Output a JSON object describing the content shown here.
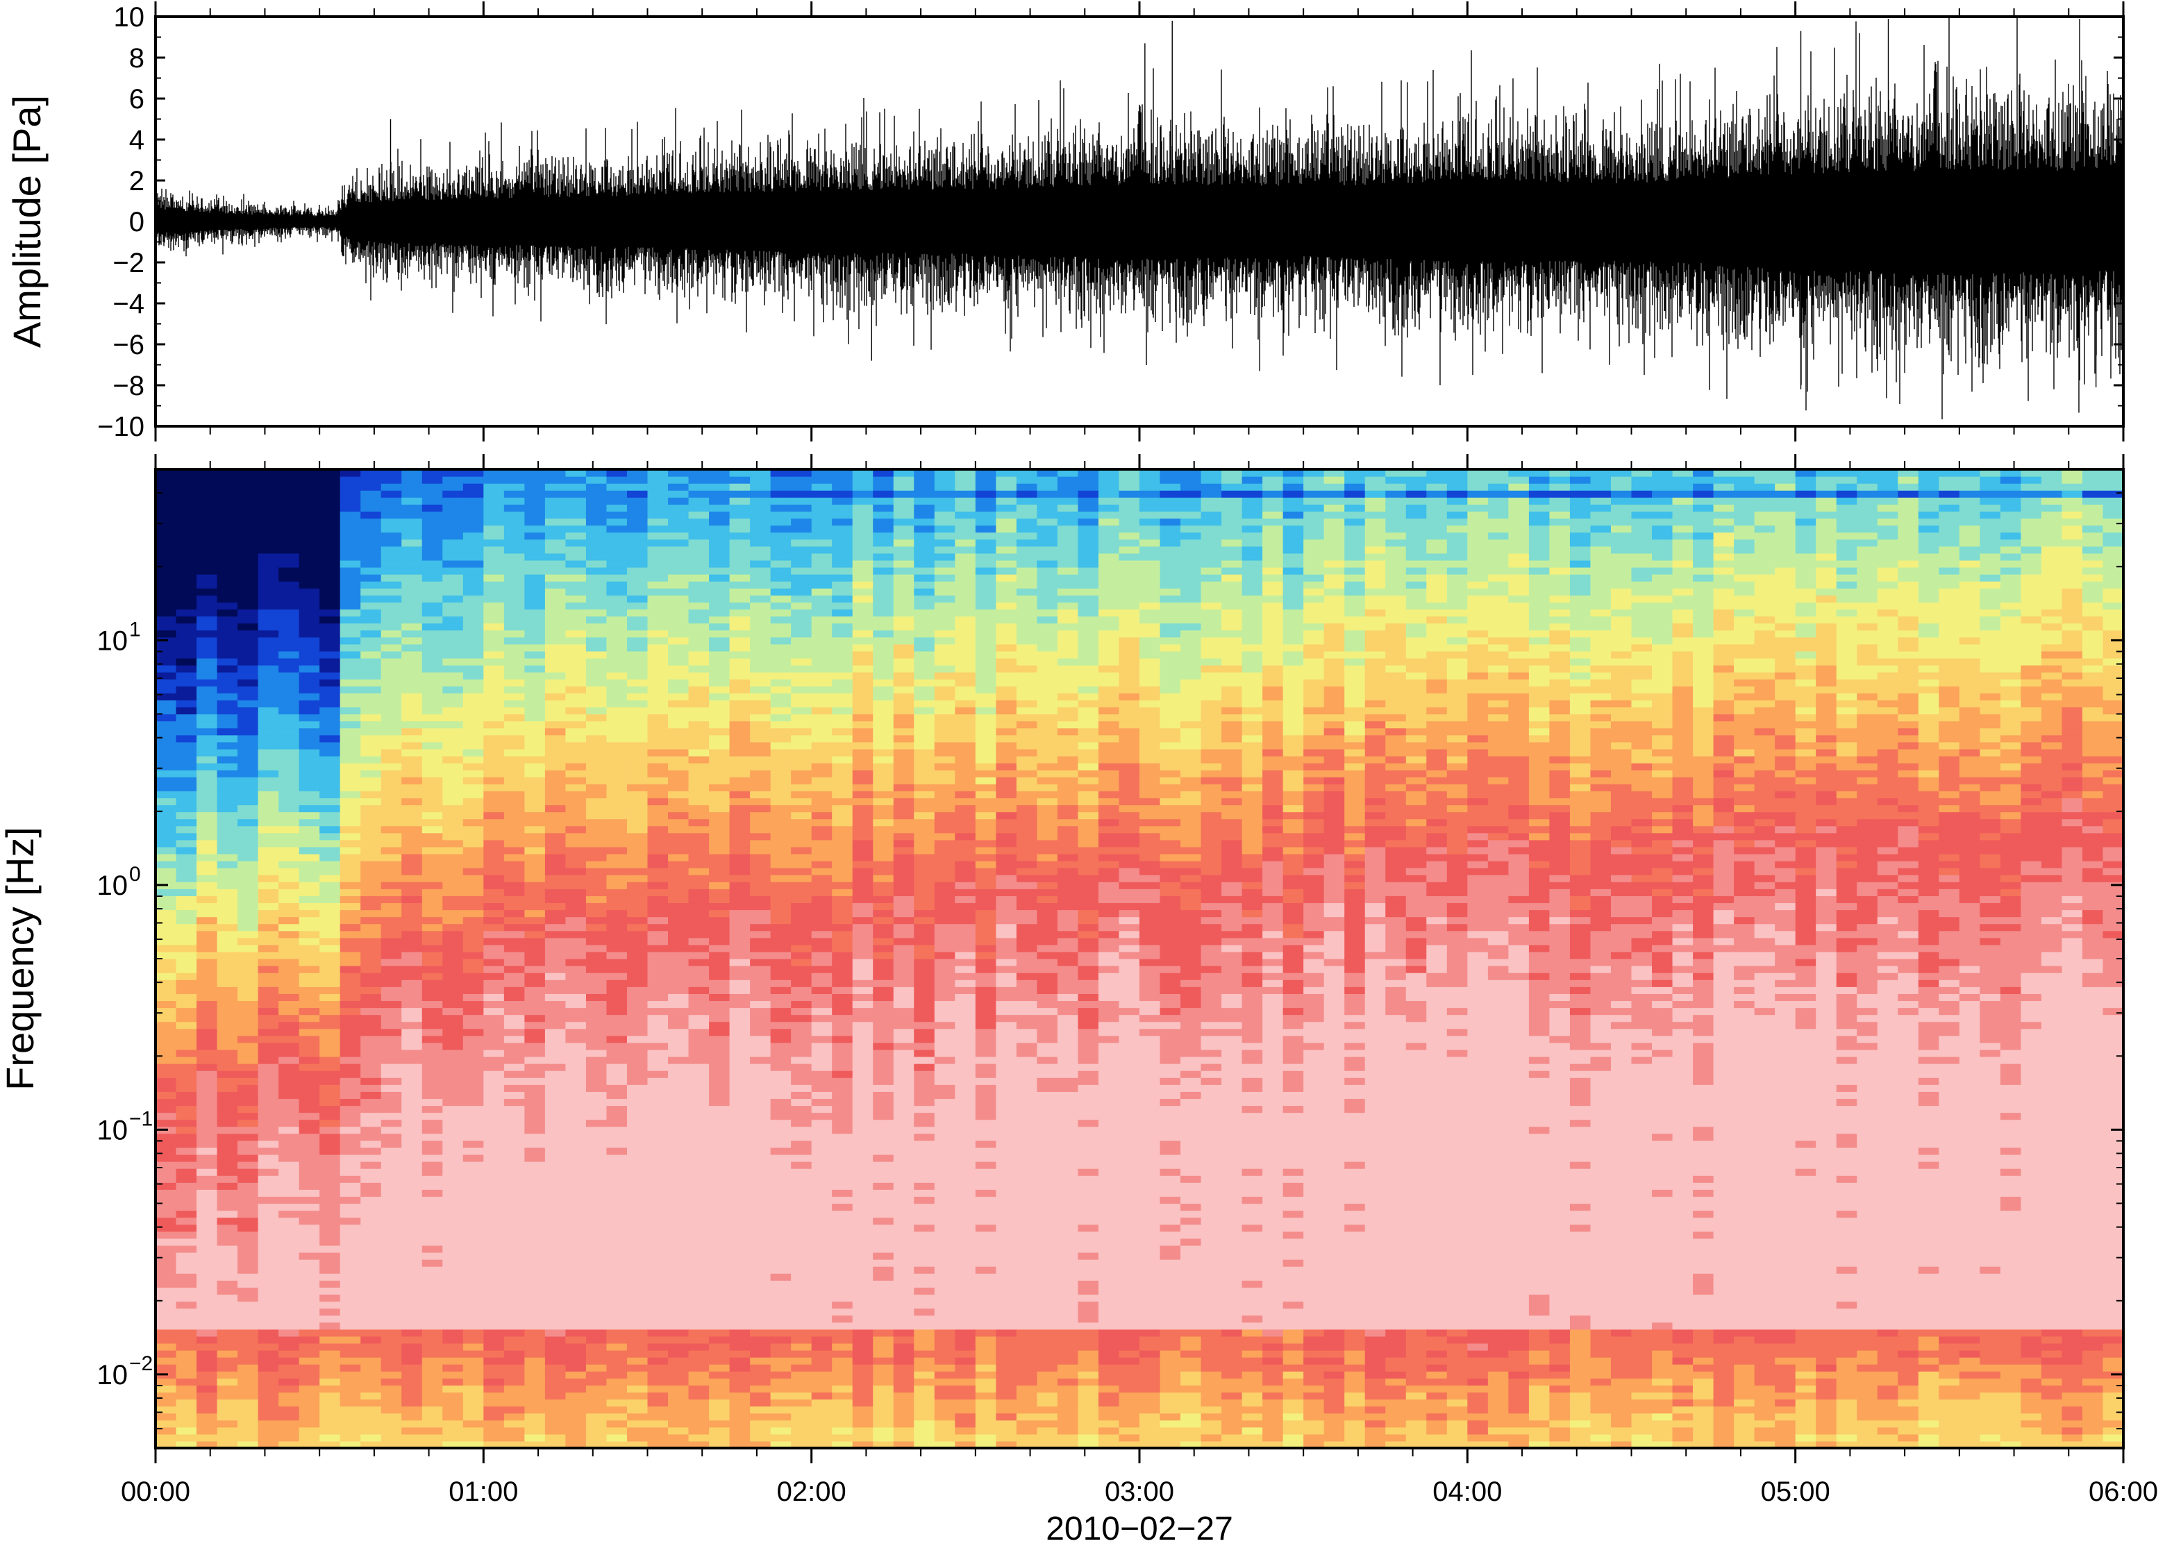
{
  "chart_data": [
    {
      "type": "line",
      "panel": "waveform",
      "ylabel": "Amplitude [Pa]",
      "xlabel": "",
      "xlim": [
        "00:00",
        "06:00"
      ],
      "ylim": [
        -10,
        10
      ],
      "yticks": [
        10,
        8,
        6,
        4,
        2,
        0,
        -2,
        -4,
        -6,
        -8,
        -10
      ],
      "ytick_labels": [
        "10",
        "8",
        "6",
        "4",
        "2",
        "0",
        "−2",
        "−4",
        "−6",
        "−8",
        "−10"
      ],
      "grid": false,
      "color": "#000000",
      "envelope": {
        "description_hours": [
          0.0,
          0.25,
          0.5,
          0.55,
          0.6,
          1.0,
          1.5,
          2.0,
          2.5,
          3.0,
          3.5,
          4.0,
          4.5,
          5.0,
          5.5,
          6.0
        ],
        "half_width_pa": [
          0.8,
          0.5,
          0.35,
          0.4,
          1.3,
          1.6,
          1.8,
          2.1,
          2.2,
          2.6,
          2.4,
          2.8,
          2.6,
          3.3,
          3.6,
          3.4
        ]
      },
      "peaks": [
        {
          "t": "00:43",
          "y": 5.0
        },
        {
          "t": "02:11",
          "y": -6.8
        },
        {
          "t": "03:01",
          "y": 8.7
        },
        {
          "t": "03:06",
          "y": 9.8
        },
        {
          "t": "03:22",
          "y": -7.3
        },
        {
          "t": "03:49",
          "y": 6.8
        },
        {
          "t": "03:55",
          "y": -8.0
        },
        {
          "t": "05:01",
          "y": 9.3
        },
        {
          "t": "05:01",
          "y": -8.2
        },
        {
          "t": "05:17",
          "y": 9.9
        },
        {
          "t": "05:20",
          "y": -7.4
        },
        {
          "t": "05:52",
          "y": 9.9
        },
        {
          "t": "05:55",
          "y": -8.1
        }
      ]
    },
    {
      "type": "heatmap",
      "panel": "spectrogram",
      "ylabel": "Frequency [Hz]",
      "xlabel": "2010−02−27",
      "xlim": [
        "00:00",
        "06:00"
      ],
      "yscale": "log",
      "ylim": [
        0.005,
        50
      ],
      "yticks": [
        {
          "value": 10,
          "base": "10",
          "exp": "1"
        },
        {
          "value": 1,
          "base": "10",
          "exp": "0"
        },
        {
          "value": 0.1,
          "base": "10",
          "exp": "−1"
        },
        {
          "value": 0.01,
          "base": "10",
          "exp": "−2"
        }
      ],
      "xticks": [
        "00:00",
        "01:00",
        "02:00",
        "03:00",
        "04:00",
        "05:00",
        "06:00"
      ],
      "colormap": [
        "#000a57",
        "#0a1c9a",
        "#1244d6",
        "#1e86e8",
        "#3fbfe9",
        "#80dcd0",
        "#c4ee9e",
        "#f3f07e",
        "#fbd16a",
        "#fba45a",
        "#f5735a",
        "#ef5b5b",
        "#f48c8c",
        "#fac2c2"
      ],
      "grid": false,
      "structure": {
        "time_hours": [
          0.0,
          0.3,
          0.55,
          0.6,
          1.2,
          2.0,
          2.6,
          3.0,
          3.8,
          4.5,
          5.0,
          5.5,
          6.0
        ],
        "transition_freq_hz": [
          0.15,
          0.18,
          0.2,
          0.5,
          0.7,
          0.9,
          1.1,
          1.2,
          1.4,
          1.6,
          1.8,
          1.9,
          1.9
        ],
        "pink_band_hz": [
          0.02,
          0.1
        ],
        "low_band_hz": [
          0.005,
          0.015
        ]
      }
    }
  ]
}
